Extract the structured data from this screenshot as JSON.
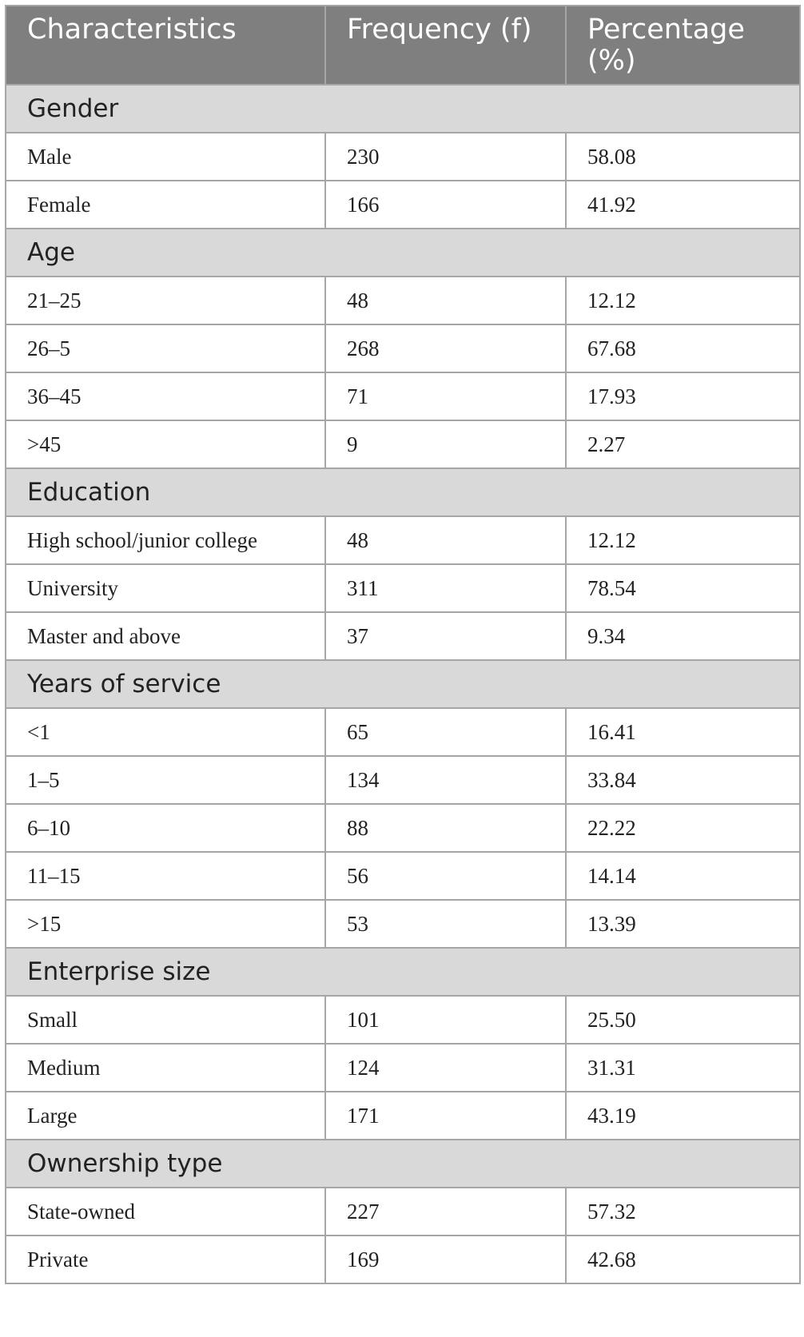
{
  "table": {
    "header": [
      "Characteristics",
      "Frequency (f)",
      "Percentage (%)"
    ],
    "sections": [
      {
        "title": "Gender",
        "rows": [
          [
            "Male",
            230,
            "58.08"
          ],
          [
            "Female",
            166,
            "41.92"
          ]
        ]
      },
      {
        "title": "Age",
        "rows": [
          [
            "21–25",
            48,
            "12.12"
          ],
          [
            "26–5",
            268,
            "67.68"
          ],
          [
            "36–45",
            71,
            "17.93"
          ],
          [
            ">45",
            9,
            "2.27"
          ]
        ]
      },
      {
        "title": "Education",
        "rows": [
          [
            "High school/junior college",
            48,
            "12.12"
          ],
          [
            "University",
            311,
            "78.54"
          ],
          [
            "Master and above",
            37,
            "9.34"
          ]
        ]
      },
      {
        "title": "Years of service",
        "rows": [
          [
            "<1",
            65,
            "16.41"
          ],
          [
            "1–5",
            134,
            "33.84"
          ],
          [
            "6–10",
            88,
            "22.22"
          ],
          [
            "11–15",
            56,
            "14.14"
          ],
          [
            ">15",
            53,
            "13.39"
          ]
        ]
      },
      {
        "title": "Enterprise size",
        "rows": [
          [
            "Small",
            101,
            "25.50"
          ],
          [
            "Medium",
            124,
            "31.31"
          ],
          [
            "Large",
            171,
            "43.19"
          ]
        ]
      },
      {
        "title": "Ownership type",
        "rows": [
          [
            "State-owned",
            227,
            "57.32"
          ],
          [
            "Private",
            169,
            "42.68"
          ]
        ]
      }
    ]
  }
}
